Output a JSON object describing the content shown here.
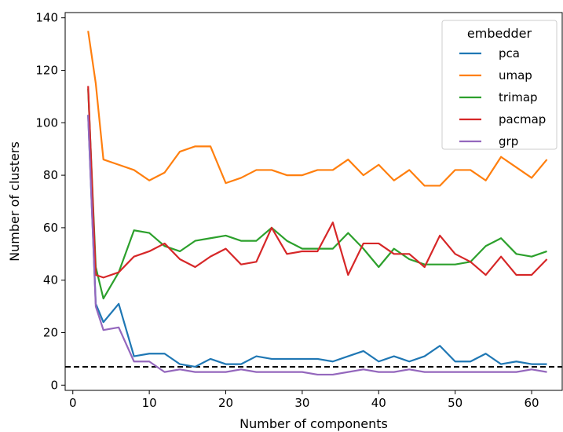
{
  "chart_data": {
    "type": "line",
    "xlabel": "Number of components",
    "ylabel": "Number of clusters",
    "xlim": [
      -1,
      64
    ],
    "ylim": [
      -2,
      142
    ],
    "xticks": [
      0,
      10,
      20,
      30,
      40,
      50,
      60
    ],
    "yticks": [
      0,
      20,
      40,
      60,
      80,
      100,
      120,
      140
    ],
    "grid": false,
    "legend": {
      "title": "embedder",
      "placement": "top-right"
    },
    "reference_line": {
      "y": 7,
      "style": "dashed",
      "color": "#000000"
    },
    "x": [
      2,
      3,
      4,
      6,
      8,
      10,
      12,
      14,
      16,
      18,
      20,
      22,
      24,
      26,
      28,
      30,
      32,
      34,
      36,
      38,
      40,
      42,
      44,
      46,
      48,
      50,
      52,
      54,
      56,
      58,
      60,
      62
    ],
    "series": [
      {
        "name": "pca",
        "color": "#1f77b4",
        "values": [
          103,
          31,
          24,
          31,
          11,
          12,
          12,
          8,
          7,
          10,
          8,
          8,
          11,
          10,
          10,
          10,
          10,
          9,
          11,
          13,
          9,
          11,
          9,
          11,
          15,
          9,
          9,
          12,
          8,
          9,
          8,
          8
        ]
      },
      {
        "name": "umap",
        "color": "#ff7f0e",
        "values": [
          135,
          115,
          86,
          84,
          82,
          78,
          81,
          89,
          91,
          91,
          77,
          79,
          82,
          82,
          80,
          80,
          82,
          82,
          86,
          80,
          84,
          78,
          82,
          76,
          76,
          82,
          82,
          78,
          87,
          83,
          79,
          86
        ]
      },
      {
        "name": "trimap",
        "color": "#2ca02c",
        "values": [
          113,
          45,
          33,
          43,
          59,
          58,
          53,
          51,
          55,
          56,
          57,
          55,
          55,
          60,
          55,
          52,
          52,
          52,
          58,
          52,
          45,
          52,
          48,
          46,
          46,
          46,
          47,
          53,
          56,
          50,
          49,
          51
        ]
      },
      {
        "name": "pacmap",
        "color": "#d62728",
        "values": [
          114,
          42,
          41,
          43,
          49,
          51,
          54,
          48,
          45,
          49,
          52,
          46,
          47,
          60,
          50,
          51,
          51,
          62,
          42,
          54,
          54,
          50,
          50,
          45,
          57,
          50,
          47,
          42,
          49,
          42,
          42,
          48
        ]
      },
      {
        "name": "grp",
        "color": "#9467bd",
        "values": [
          103,
          30,
          21,
          22,
          9,
          9,
          5,
          6,
          5,
          5,
          5,
          6,
          5,
          5,
          5,
          5,
          4,
          4,
          5,
          6,
          5,
          5,
          6,
          5,
          5,
          5,
          5,
          5,
          5,
          5,
          6,
          5
        ]
      }
    ]
  }
}
